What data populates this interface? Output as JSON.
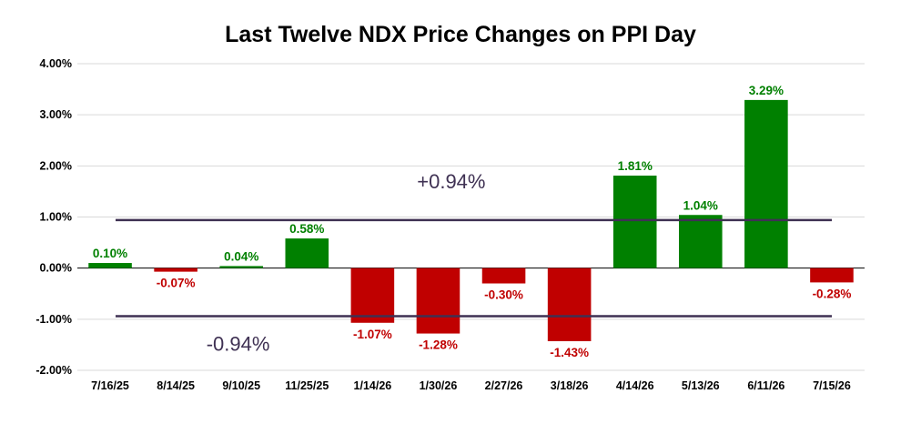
{
  "chart_data": {
    "type": "bar",
    "title": "Last Twelve NDX Price Changes on PPI Day",
    "categories": [
      "7/16/25",
      "8/14/25",
      "9/10/25",
      "11/25/25",
      "1/14/26",
      "1/30/26",
      "2/27/26",
      "3/18/26",
      "4/14/26",
      "5/13/26",
      "6/11/26",
      "7/15/26"
    ],
    "values": [
      0.1,
      -0.07,
      0.04,
      0.58,
      -1.07,
      -1.28,
      -0.3,
      -1.43,
      1.81,
      1.04,
      3.29,
      -0.28
    ],
    "data_labels": [
      "0.10%",
      "-0.07%",
      "0.04%",
      "0.58%",
      "-1.07%",
      "-1.28%",
      "-0.30%",
      "-1.43%",
      "1.81%",
      "1.04%",
      "3.29%",
      "-0.28%"
    ],
    "ylim": [
      -2,
      4
    ],
    "yticks": [
      4,
      3,
      2,
      1,
      0,
      -1,
      -2
    ],
    "ytick_labels": [
      "4.00%",
      "3.00%",
      "2.00%",
      "1.00%",
      "0.00%",
      "-1.00%",
      "-2.00%"
    ],
    "grid": true,
    "reference_lines": [
      {
        "value": 0.94,
        "label": "+0.94%"
      },
      {
        "value": -0.94,
        "label": "-0.94%"
      }
    ],
    "colors": {
      "positive": "#008000",
      "negative": "#c00000",
      "reference": "#3f3153",
      "grid": "#d9d9d9",
      "axis": "#000000"
    }
  }
}
